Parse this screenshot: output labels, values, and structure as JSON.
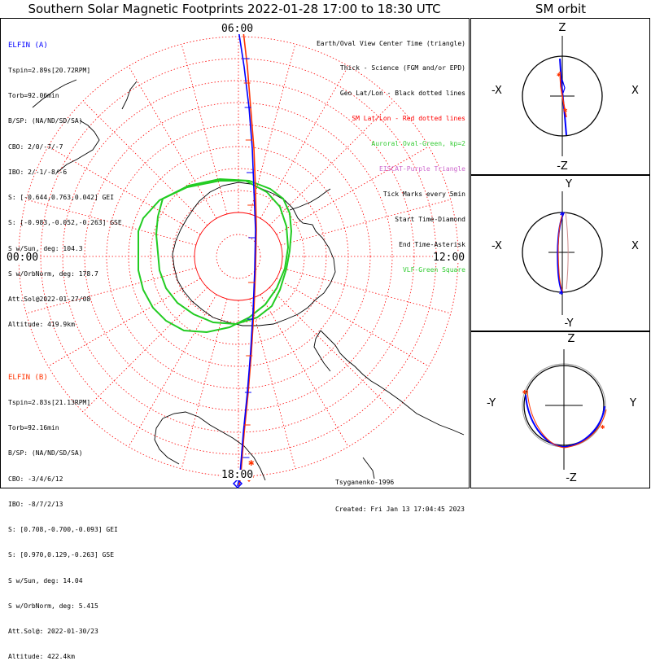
{
  "title": "Southern Solar Magnetic Footprints 2022-01-28 17:00 to 18:30 UTC",
  "orbit_title": "SM orbit",
  "map": {
    "time_labels": {
      "top": "06:00",
      "left": "00:00",
      "right": "12:00",
      "bottom": "18:00"
    }
  },
  "elfin_a": {
    "name": "ELFIN (A)",
    "color": "#0000ff",
    "lines": [
      "Tspin=2.89s[20.72RPM]",
      "Torb=92.06min",
      "B/SP: (NA/ND/SD/SA)",
      "CBO: 2/0/-7/-7",
      "IBO: 2/-1/-8/-6",
      "S: [-0.644,0.763,0.042] GEI",
      "S: [-0.983,-0.052,-0.263] GSE",
      "S w/Sun, deg: 104.3",
      "S w/OrbNorm, deg: 178.7",
      "Att.Sol@2022-01-27/08",
      "Altitude: 419.9km"
    ]
  },
  "elfin_b": {
    "name": "ELFIN (B)",
    "color": "#ff3300",
    "lines": [
      "Tspin=2.83s[21.13RPM]",
      "Torb=92.16min",
      "B/SP: (NA/ND/SD/SA)",
      "CBO: -3/4/6/12",
      "IBO: -8/7/2/13",
      "S: [0.708,-0.700,-0.093] GEI",
      "S: [0.970,0.129,-0.263] GSE",
      "S w/Sun, deg: 14.04",
      "S w/OrbNorm, deg: 5.415",
      "Att.Sol@: 2022-01-30/23",
      "Altitude: 422.4km"
    ]
  },
  "legend": [
    {
      "text": "Earth/Oval View Center Time (triangle)",
      "color": "#000000"
    },
    {
      "text": "Thick - Science (FGM and/or EPD)",
      "color": "#000000"
    },
    {
      "text": "Geo Lat/Lon - Black dotted lines",
      "color": "#000000"
    },
    {
      "text": "SM Lat/Lon - Red dotted lines",
      "color": "#ff0000"
    },
    {
      "text": "Auroral Oval-Green, kp=2",
      "color": "#33cc33"
    },
    {
      "text": "EISCAT-Purple Triangle",
      "color": "#cc66cc"
    },
    {
      "text": "Tick Marks every 5min",
      "color": "#000000"
    },
    {
      "text": "Start Time-Diamond",
      "color": "#000000"
    },
    {
      "text": "End Time-Asterisk",
      "color": "#000000"
    },
    {
      "text": "VLF-Green Square",
      "color": "#33cc33"
    }
  ],
  "credits": [
    "Tsyganenko-1996",
    "Created: Fri Jan 13 17:04:45 2023"
  ],
  "orbit_panels": [
    {
      "top": "Z",
      "bottom": "-Z",
      "left": "-X",
      "right": "X"
    },
    {
      "top": "Y",
      "bottom": "-Y",
      "left": "-X",
      "right": "X"
    },
    {
      "top": "Z",
      "bottom": "-Z",
      "left": "-Y",
      "right": "Y"
    }
  ],
  "colors": {
    "ring_sm": "#ff0000",
    "oval": "#22cc22",
    "coast": "#000000",
    "trace_a": "#0000ff",
    "trace_b": "#ff3300"
  }
}
